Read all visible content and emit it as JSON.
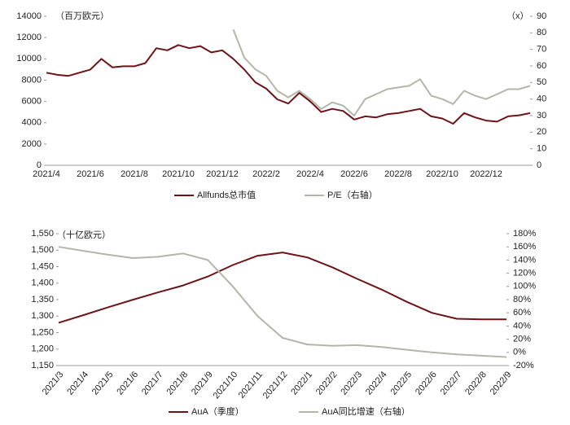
{
  "chart_data": [
    {
      "type": "line",
      "unit_label": "（百万欧元）",
      "unit_label_right": "（x）",
      "categories": [
        "2021/4",
        null,
        null,
        null,
        "2021/6",
        null,
        null,
        null,
        "2021/8",
        null,
        null,
        null,
        "2021/10",
        null,
        null,
        null,
        "2021/12",
        null,
        null,
        null,
        "2022/2",
        null,
        null,
        null,
        "2022/4",
        null,
        null,
        null,
        "2022/6",
        null,
        null,
        null,
        "2022/8",
        null,
        null,
        null,
        "2022/10",
        null,
        null,
        null,
        "2022/12",
        null,
        null,
        null,
        null
      ],
      "series": [
        {
          "name": "Allfunds总市值",
          "color": "#6e1417",
          "values": [
            8700,
            8500,
            8400,
            8700,
            9000,
            10000,
            9200,
            9300,
            9300,
            9600,
            11000,
            10800,
            11300,
            11000,
            11200,
            10600,
            10800,
            10000,
            9000,
            7800,
            7200,
            6200,
            5800,
            6800,
            6000,
            5000,
            5300,
            5100,
            4300,
            4600,
            4500,
            4800,
            4900,
            5100,
            5300,
            4600,
            4400,
            3900,
            4900,
            4500,
            4200,
            4100,
            4600,
            4700,
            4900
          ]
        },
        {
          "name": "P/E（右轴）",
          "color": "#b3b7aa",
          "axis": "y2",
          "values": [
            null,
            null,
            null,
            null,
            null,
            null,
            null,
            null,
            null,
            null,
            null,
            null,
            null,
            null,
            null,
            null,
            null,
            82,
            65,
            58,
            54,
            45,
            41,
            45,
            40,
            34,
            38,
            36,
            30,
            40,
            43,
            46,
            47,
            48,
            52,
            42,
            40,
            37,
            45,
            42,
            40,
            43,
            46,
            46,
            48
          ]
        }
      ],
      "ylim": [
        0,
        14000
      ],
      "yticks": [
        0,
        2000,
        4000,
        6000,
        8000,
        10000,
        12000,
        14000
      ],
      "y2lim": [
        0,
        90
      ],
      "y2ticks": [
        0,
        10,
        20,
        30,
        40,
        50,
        60,
        70,
        80,
        90
      ],
      "legend": "bottom"
    },
    {
      "type": "line",
      "unit_label": "（十亿欧元）",
      "categories": [
        "2021/3",
        "2021/4",
        "2021/5",
        "2021/6",
        "2021/7",
        "2021/8",
        "2021/9",
        "2021/10",
        "2021/11",
        "2021/12",
        "2022/1",
        "2022/2",
        "2022/3",
        "2022/4",
        "2022/5",
        "2022/6",
        "2022/7",
        "2022/8",
        "2022/9"
      ],
      "series": [
        {
          "name": "AuA（季度）",
          "color": "#6e1417",
          "values": [
            1280,
            1303,
            1327,
            1350,
            1372,
            1393,
            1420,
            1455,
            1483,
            1493,
            1478,
            1448,
            1413,
            1380,
            1343,
            1310,
            1292,
            1290,
            1290
          ]
        },
        {
          "name": "AuA同比增速（右轴）",
          "color": "#b3b7aa",
          "axis": "y2",
          "values": [
            160,
            154,
            148,
            143,
            145,
            150,
            140,
            100,
            55,
            22,
            12,
            10,
            11,
            8,
            4,
            0,
            -3,
            -5,
            -7
          ]
        }
      ],
      "ylim": [
        1150,
        1550
      ],
      "yticks": [
        {
          "value": 1150,
          "label": "1,150"
        },
        {
          "value": 1200,
          "label": "1,200"
        },
        {
          "value": 1250,
          "label": "1,250"
        },
        {
          "value": 1300,
          "label": "1,300"
        },
        {
          "value": 1350,
          "label": "1,350"
        },
        {
          "value": 1400,
          "label": "1,400"
        },
        {
          "value": 1450,
          "label": "1,450"
        },
        {
          "value": 1500,
          "label": "1,500"
        },
        {
          "value": 1550,
          "label": "1,550"
        }
      ],
      "y2lim": [
        -20,
        180
      ],
      "y2ticks": [
        {
          "value": -20,
          "label": "-20%"
        },
        {
          "value": 0,
          "label": "0%"
        },
        {
          "value": 20,
          "label": "20%"
        },
        {
          "value": 40,
          "label": "40%"
        },
        {
          "value": 60,
          "label": "60%"
        },
        {
          "value": 80,
          "label": "80%"
        },
        {
          "value": 100,
          "label": "100%"
        },
        {
          "value": 120,
          "label": "120%"
        },
        {
          "value": 140,
          "label": "140%"
        },
        {
          "value": 160,
          "label": "160%"
        },
        {
          "value": 180,
          "label": "180%"
        }
      ],
      "legend": "bottom",
      "rotated_labels": true
    }
  ]
}
